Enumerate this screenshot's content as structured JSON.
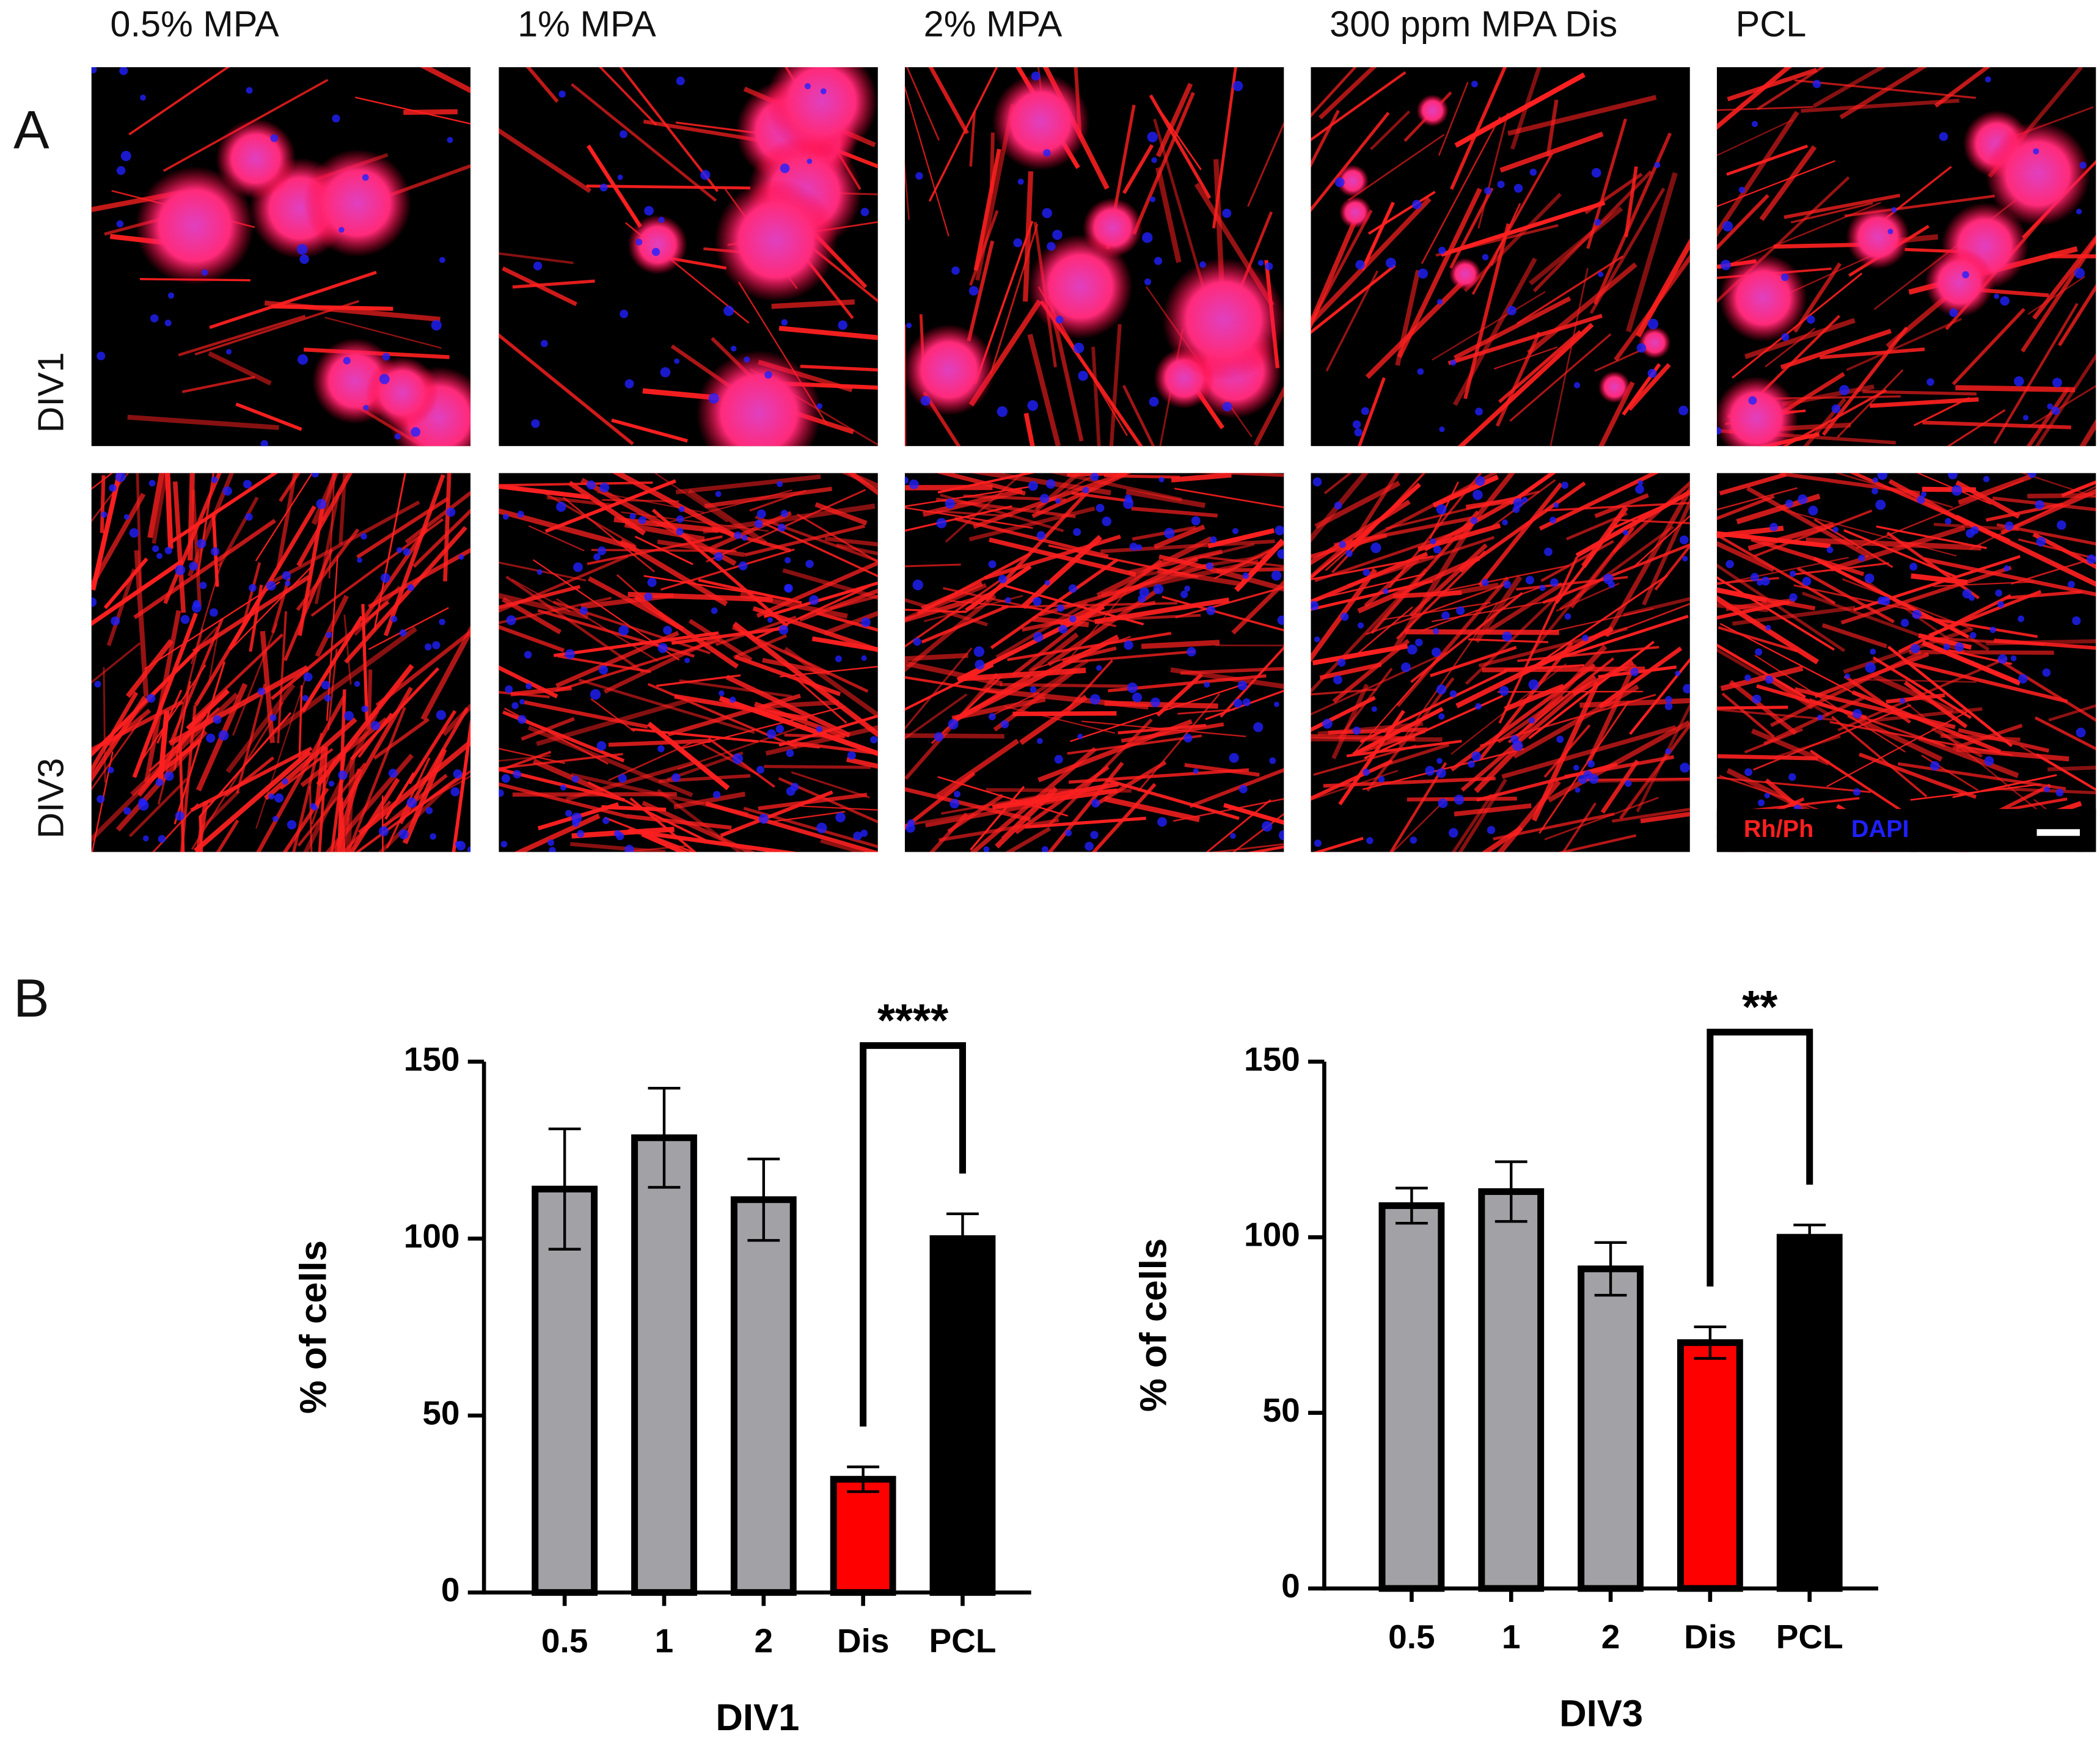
{
  "panel_a": {
    "label": "A",
    "columns": [
      "0.5% MPA",
      "1% MPA",
      "2% MPA",
      "300 ppm MPA Dis",
      "PCL"
    ],
    "rows": [
      "DIV1",
      "DIV3"
    ],
    "stains": [
      {
        "name": "Rh/Ph",
        "color": "#ff2020"
      },
      {
        "name": "DAPI",
        "color": "#2020ff"
      }
    ]
  },
  "panel_b_label": "B",
  "chart_data": [
    {
      "type": "bar",
      "xlabel": "DIV1",
      "ylabel": "% of cells",
      "categories": [
        "0.5",
        "1",
        "2",
        "Dis",
        "PCL"
      ],
      "values": [
        114,
        128.5,
        111,
        32,
        100
      ],
      "errors": [
        17,
        14,
        11.5,
        3.5,
        7
      ],
      "colors": [
        "#a2a2a6",
        "#a2a2a6",
        "#a2a2a6",
        "#ff0000",
        "#000000"
      ],
      "ylim": [
        0,
        150
      ],
      "yticks": [
        0,
        50,
        100,
        150
      ],
      "annotations": [
        {
          "text": "****",
          "between": [
            "Dis",
            "PCL"
          ]
        }
      ]
    },
    {
      "type": "bar",
      "xlabel": "DIV3",
      "ylabel": "% of cells",
      "categories": [
        "0.5",
        "1",
        "2",
        "Dis",
        "PCL"
      ],
      "values": [
        109,
        113,
        91,
        70,
        100
      ],
      "errors": [
        5,
        8.5,
        7.5,
        4.5,
        3.5
      ],
      "colors": [
        "#a2a2a6",
        "#a2a2a6",
        "#a2a2a6",
        "#ff0000",
        "#000000"
      ],
      "ylim": [
        0,
        150
      ],
      "yticks": [
        0,
        50,
        100,
        150
      ],
      "annotations": [
        {
          "text": "**",
          "between": [
            "Dis",
            "PCL"
          ]
        }
      ]
    }
  ]
}
